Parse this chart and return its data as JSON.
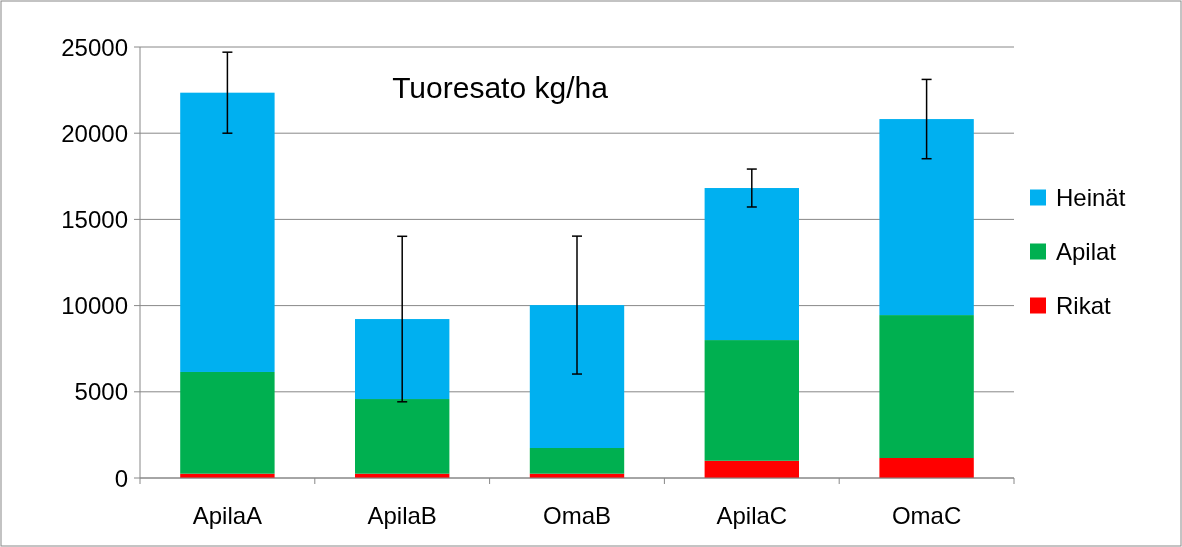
{
  "chart_data": {
    "type": "bar",
    "title": "Tuoresato kg/ha",
    "categories": [
      "ApilaA",
      "ApilaB",
      "OmaB",
      "ApilaC",
      "OmaC"
    ],
    "stacked": true,
    "series": [
      {
        "name": "Rikat",
        "color": "#ff0000",
        "values": [
          250,
          250,
          250,
          1000,
          1160
        ]
      },
      {
        "name": "Apilat",
        "color": "#00b050",
        "values": [
          5900,
          4330,
          1490,
          7000,
          8290
        ]
      },
      {
        "name": "Heinät",
        "color": "#00b0f0",
        "values": [
          16200,
          4640,
          8290,
          8820,
          11370
        ],
        "errors": [
          2350,
          4800,
          4000,
          1100,
          2300
        ]
      }
    ],
    "ylim": [
      0,
      25000
    ],
    "yticks": [
      0,
      5000,
      10000,
      15000,
      20000,
      25000
    ],
    "grid": "y",
    "legend": "right"
  }
}
